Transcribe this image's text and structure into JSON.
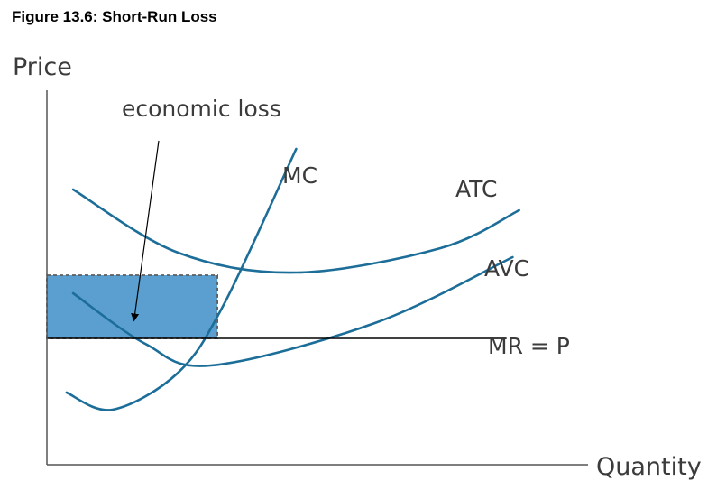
{
  "title": "Figure 13.6: Short-Run Loss",
  "chart_data": {
    "type": "line",
    "xlabel": "Quantity",
    "ylabel": "Price",
    "grid": false,
    "legend": "none",
    "annotation": "economic loss",
    "series": [
      {
        "name": "MC",
        "color": "#1c6e99",
        "points": [
          [
            0.6,
            80
          ],
          [
            2.0,
            61
          ],
          [
            4.0,
            102
          ],
          [
            5.4,
            178
          ],
          [
            7.6,
            350
          ]
        ]
      },
      {
        "name": "ATC",
        "color": "#1c6e99",
        "points": [
          [
            0.8,
            305
          ],
          [
            4.0,
            235
          ],
          [
            7.6,
            213
          ],
          [
            12.0,
            240
          ],
          [
            14.4,
            282
          ]
        ]
      },
      {
        "name": "AVC",
        "color": "#1c6e99",
        "points": [
          [
            0.8,
            190
          ],
          [
            3.0,
            134
          ],
          [
            5.0,
            110
          ],
          [
            10.0,
            157
          ],
          [
            14.2,
            230
          ]
        ]
      },
      {
        "name": "MR = P",
        "color": "#000000",
        "points": [
          [
            0.0,
            140
          ],
          [
            14.0,
            140
          ]
        ]
      }
    ],
    "loss_rectangle": {
      "x0": 0.0,
      "x1": 5.2,
      "y0": 140,
      "y1": 210,
      "fill": "#5a9fcf"
    },
    "xlim": [
      0,
      16.5
    ],
    "ylim": [
      0,
      420
    ]
  }
}
